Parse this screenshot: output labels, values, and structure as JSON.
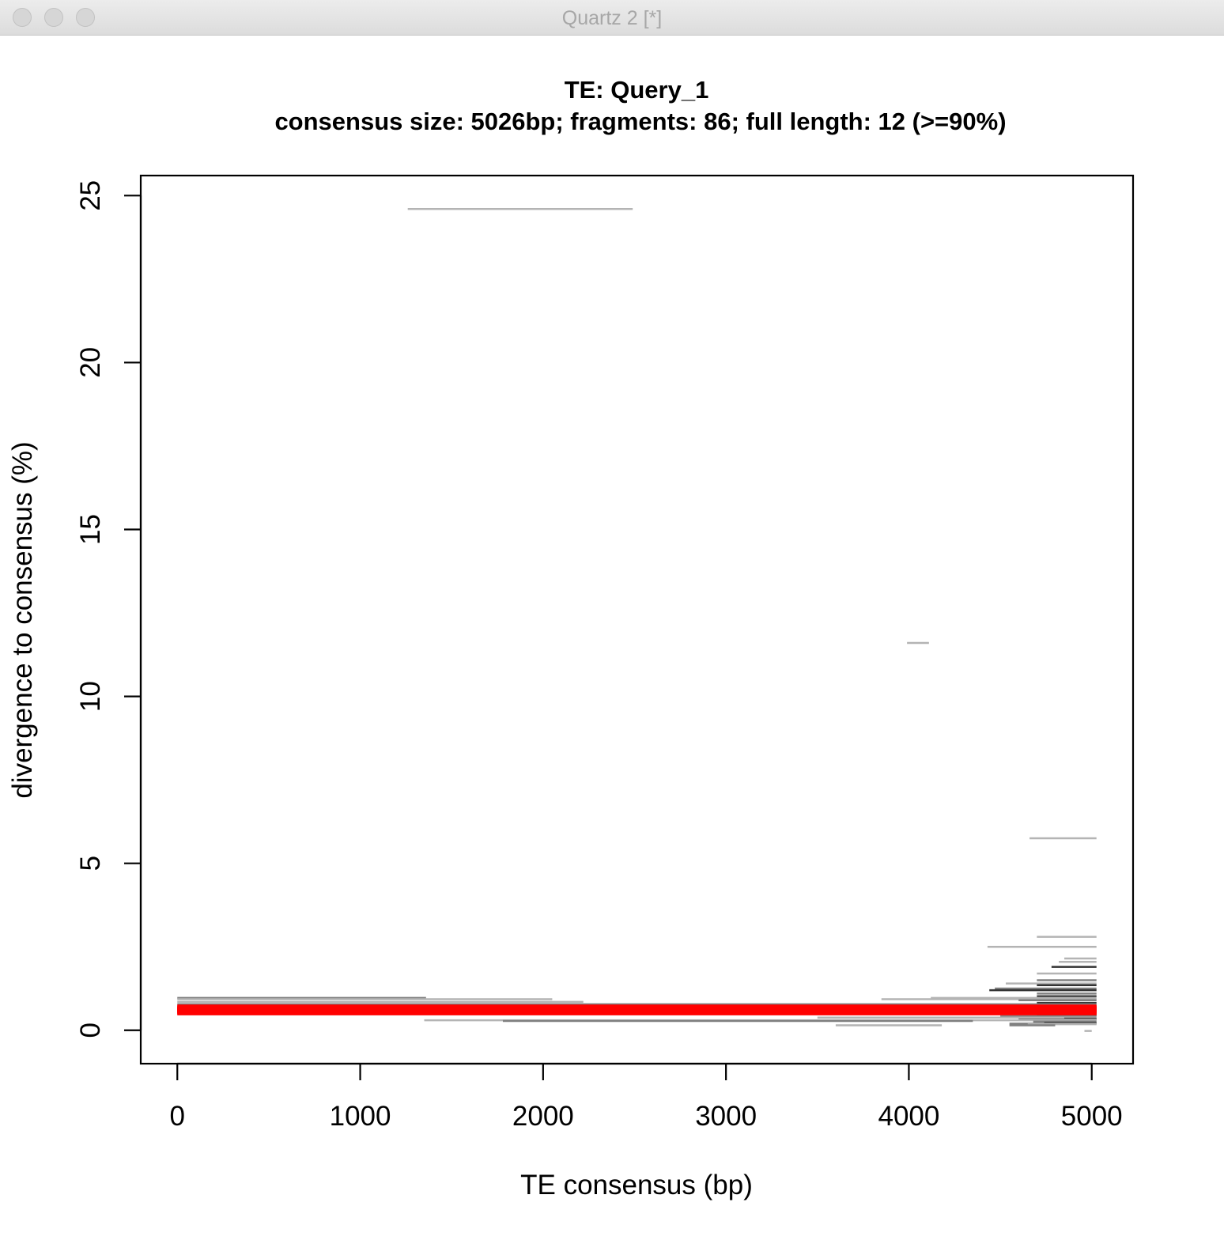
{
  "window": {
    "title": "Quartz 2 [*]"
  },
  "chart_data": {
    "type": "segments",
    "title": "TE: Query_1",
    "subtitle": "consensus size: 5026bp; fragments: 86; full length: 12 (>=90%)",
    "xlabel": "TE consensus (bp)",
    "ylabel": "divergence to consensus (%)",
    "xlim": [
      -200,
      5226
    ],
    "ylim": [
      -1.0,
      25.6
    ],
    "xticks": [
      0,
      1000,
      2000,
      3000,
      4000,
      5000
    ],
    "yticks": [
      0,
      5,
      10,
      15,
      20,
      25
    ],
    "grid": false,
    "legend": "none",
    "colors": {
      "fragment_light": "#b4b4b4",
      "fragment_mid": "#808080",
      "fragment_dark": "#333333",
      "full_length": "#ff0000",
      "axis": "#000000"
    },
    "fragments": [
      {
        "x0": 1260,
        "x1": 2490,
        "y": 24.6,
        "shade": "light"
      },
      {
        "x0": 3990,
        "x1": 4110,
        "y": 11.6,
        "shade": "light"
      },
      {
        "x0": 4660,
        "x1": 5026,
        "y": 5.75,
        "shade": "light"
      },
      {
        "x0": 4700,
        "x1": 5026,
        "y": 2.8,
        "shade": "light"
      },
      {
        "x0": 4430,
        "x1": 5026,
        "y": 2.5,
        "shade": "light"
      },
      {
        "x0": 4850,
        "x1": 5026,
        "y": 2.15,
        "shade": "light"
      },
      {
        "x0": 4820,
        "x1": 5026,
        "y": 2.05,
        "shade": "light"
      },
      {
        "x0": 4780,
        "x1": 5026,
        "y": 1.9,
        "shade": "dark"
      },
      {
        "x0": 4700,
        "x1": 5026,
        "y": 1.7,
        "shade": "light"
      },
      {
        "x0": 4700,
        "x1": 5026,
        "y": 1.5,
        "shade": "mid"
      },
      {
        "x0": 4530,
        "x1": 5026,
        "y": 1.4,
        "shade": "light"
      },
      {
        "x0": 4700,
        "x1": 5026,
        "y": 1.35,
        "shade": "dark"
      },
      {
        "x0": 4470,
        "x1": 5026,
        "y": 1.25,
        "shade": "mid"
      },
      {
        "x0": 4440,
        "x1": 5026,
        "y": 1.2,
        "shade": "dark"
      },
      {
        "x0": 4700,
        "x1": 5026,
        "y": 1.1,
        "shade": "mid"
      },
      {
        "x0": 4700,
        "x1": 5026,
        "y": 1.02,
        "shade": "dark"
      },
      {
        "x0": 4120,
        "x1": 5026,
        "y": 0.97,
        "shade": "light"
      },
      {
        "x0": 0,
        "x1": 1360,
        "y": 0.97,
        "shade": "mid"
      },
      {
        "x0": 3850,
        "x1": 5026,
        "y": 0.93,
        "shade": "light"
      },
      {
        "x0": 0,
        "x1": 2050,
        "y": 0.93,
        "shade": "light"
      },
      {
        "x0": 4600,
        "x1": 5026,
        "y": 0.9,
        "shade": "mid"
      },
      {
        "x0": 0,
        "x1": 2220,
        "y": 0.85,
        "shade": "light"
      },
      {
        "x0": 4700,
        "x1": 5026,
        "y": 0.82,
        "shade": "dark"
      },
      {
        "x0": 0,
        "x1": 5026,
        "y": 0.78,
        "shade": "mid"
      },
      {
        "x0": 4760,
        "x1": 5026,
        "y": 0.72,
        "shade": "mid"
      },
      {
        "x0": 3950,
        "x1": 5026,
        "y": 0.5,
        "shade": "mid"
      },
      {
        "x0": 4700,
        "x1": 5026,
        "y": 0.45,
        "shade": "dark"
      },
      {
        "x0": 4500,
        "x1": 5026,
        "y": 0.42,
        "shade": "mid"
      },
      {
        "x0": 3500,
        "x1": 5026,
        "y": 0.38,
        "shade": "light"
      },
      {
        "x0": 4850,
        "x1": 5026,
        "y": 0.35,
        "shade": "dark"
      },
      {
        "x0": 4600,
        "x1": 5026,
        "y": 0.33,
        "shade": "mid"
      },
      {
        "x0": 1350,
        "x1": 5026,
        "y": 0.3,
        "shade": "light"
      },
      {
        "x0": 1780,
        "x1": 4350,
        "y": 0.28,
        "shade": "mid"
      },
      {
        "x0": 4680,
        "x1": 5026,
        "y": 0.26,
        "shade": "mid"
      },
      {
        "x0": 4740,
        "x1": 5026,
        "y": 0.22,
        "shade": "dark"
      },
      {
        "x0": 4550,
        "x1": 5026,
        "y": 0.2,
        "shade": "mid"
      },
      {
        "x0": 4650,
        "x1": 5026,
        "y": 0.18,
        "shade": "light"
      },
      {
        "x0": 3600,
        "x1": 4180,
        "y": 0.15,
        "shade": "light"
      },
      {
        "x0": 4550,
        "x1": 4800,
        "y": 0.15,
        "shade": "mid"
      },
      {
        "x0": 4960,
        "x1": 5000,
        "y": -0.02,
        "shade": "light"
      }
    ],
    "full_length": [
      {
        "x0": 0,
        "x1": 5026,
        "y": 0.52
      },
      {
        "x0": 0,
        "x1": 5026,
        "y": 0.54
      },
      {
        "x0": 0,
        "x1": 5026,
        "y": 0.56
      },
      {
        "x0": 0,
        "x1": 5026,
        "y": 0.58
      },
      {
        "x0": 0,
        "x1": 5026,
        "y": 0.6
      },
      {
        "x0": 0,
        "x1": 5026,
        "y": 0.61
      },
      {
        "x0": 0,
        "x1": 5026,
        "y": 0.62
      },
      {
        "x0": 0,
        "x1": 5026,
        "y": 0.63
      },
      {
        "x0": 0,
        "x1": 5026,
        "y": 0.64
      },
      {
        "x0": 0,
        "x1": 5026,
        "y": 0.66
      },
      {
        "x0": 0,
        "x1": 5026,
        "y": 0.68
      },
      {
        "x0": 0,
        "x1": 5026,
        "y": 0.7
      }
    ]
  }
}
